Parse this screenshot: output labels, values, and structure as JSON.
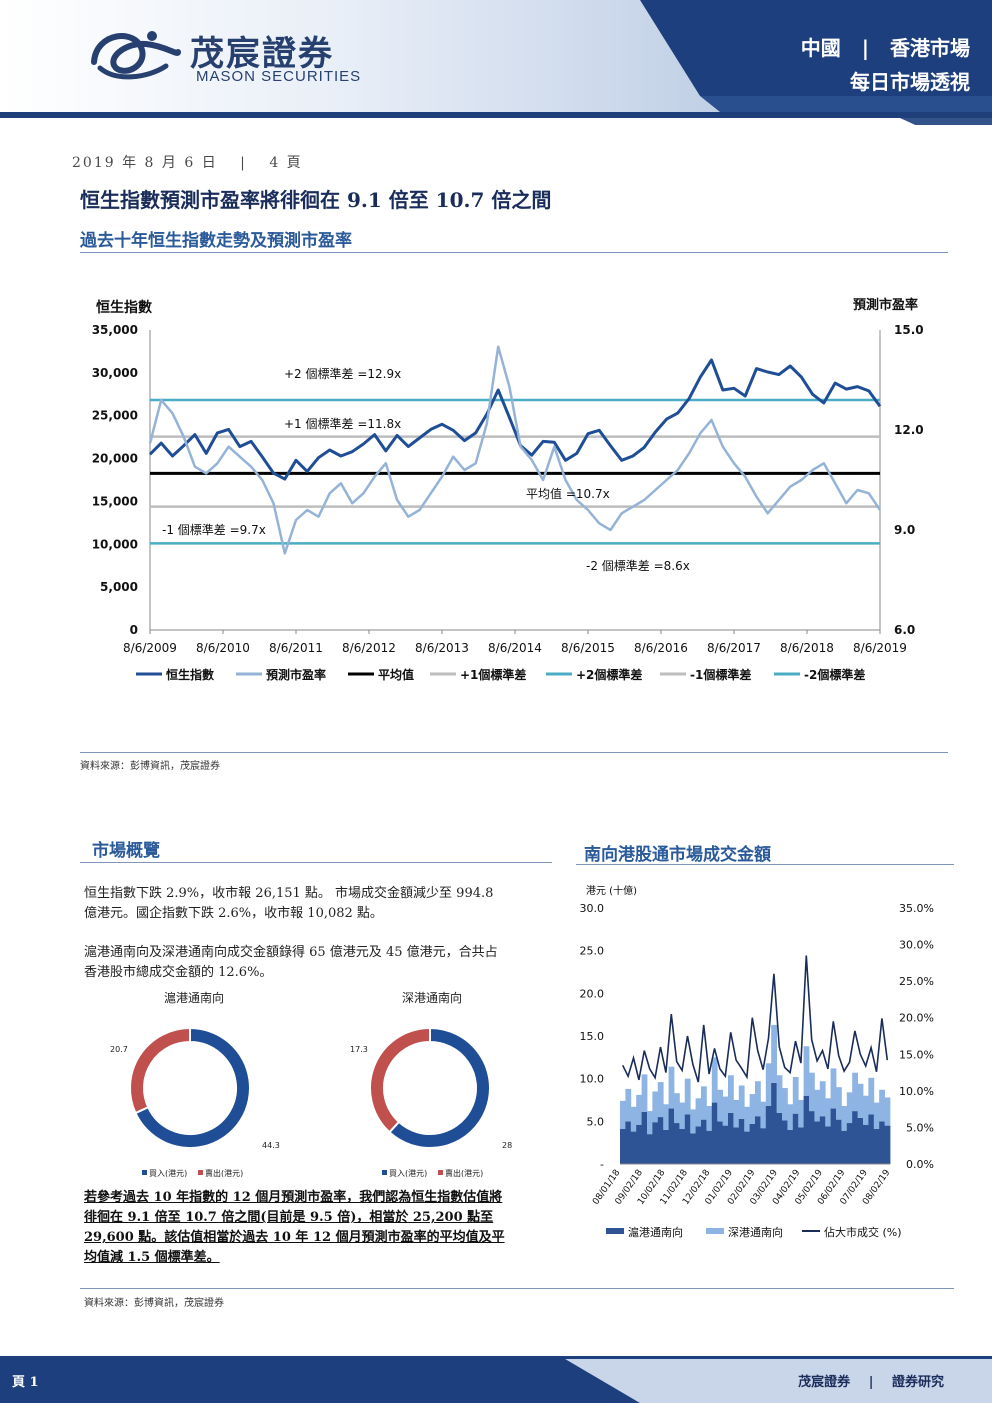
{
  "header": {
    "brand_cn": "茂宸證券",
    "brand_en": "MASON SECURITIES",
    "region_left": "中國",
    "region_right": "香港市場",
    "report_name": "每日市場透視"
  },
  "meta": {
    "date": "2019 年 8 月 6 日",
    "page": "4 頁"
  },
  "headline": "恒生指數預測市盈率將徘徊在 9.1 倍至 10.7 倍之間",
  "section1": {
    "title": "過去十年恒生指數走勢及預測市盈率",
    "source": "資料來源：彭博資訊，茂宸證券"
  },
  "chart_data": [
    {
      "type": "line",
      "left_axis_label": "恒生指數",
      "right_axis_label": "預測市盈率",
      "left_ylim": [
        0,
        35000
      ],
      "right_ylim": [
        6.0,
        15.0
      ],
      "left_ticks": [
        "0",
        "5,000",
        "10,000",
        "15,000",
        "20,000",
        "25,000",
        "30,000",
        "35,000"
      ],
      "right_ticks": [
        "6.0",
        "9.0",
        "12.0",
        "15.0"
      ],
      "x_ticks": [
        "8/6/2009",
        "8/6/2010",
        "8/6/2011",
        "8/6/2012",
        "8/6/2013",
        "8/6/2014",
        "8/6/2015",
        "8/6/2016",
        "8/6/2017",
        "8/6/2018",
        "8/6/2019"
      ],
      "annotations": [
        "+2 個標準差 =12.9x",
        "+1 個標準差 =11.8x",
        "平均值 =10.7x",
        "-1 個標準差 =9.7x",
        "-2 個標準差 =8.6x"
      ],
      "reference_lines": [
        {
          "name": "平均值",
          "value": 10.7,
          "color": "#000000"
        },
        {
          "name": "+1個標準差",
          "value": 11.8,
          "color": "#bdbdbd"
        },
        {
          "name": "+2個標準差",
          "value": 12.9,
          "color": "#4bacc6"
        },
        {
          "name": "-1個標準差",
          "value": 9.7,
          "color": "#bdbdbd"
        },
        {
          "name": "-2個標準差",
          "value": 8.6,
          "color": "#4bacc6"
        }
      ],
      "legend": [
        "恒生指數",
        "預測市盈率",
        "平均值",
        "+1個標準差",
        "+2個標準差",
        "-1個標準差",
        "-2個標準差"
      ],
      "legend_position": "bottom",
      "series": [
        {
          "name": "恒生指數",
          "axis": "left",
          "color": "#1f4e96",
          "values": [
            20500,
            21800,
            20300,
            21500,
            22800,
            20600,
            23000,
            23400,
            21400,
            22000,
            20200,
            18300,
            17600,
            19800,
            18500,
            20100,
            21000,
            20300,
            20800,
            21700,
            22800,
            20900,
            22700,
            21400,
            22400,
            23400,
            24000,
            23300,
            22100,
            23000,
            25200,
            28000,
            24800,
            21500,
            20400,
            22000,
            21900,
            19800,
            20600,
            22900,
            23300,
            21500,
            19800,
            20300,
            21300,
            23100,
            24600,
            25300,
            27000,
            29500,
            31500,
            28000,
            28200,
            27300,
            30500,
            30100,
            29800,
            30800,
            29500,
            27500,
            26500,
            28800,
            28100,
            28400,
            27900,
            26100
          ]
        },
        {
          "name": "預測市盈率",
          "axis": "right",
          "color": "#94b3d6",
          "values": [
            11.6,
            12.9,
            12.5,
            11.8,
            10.9,
            10.7,
            11.0,
            11.5,
            11.2,
            10.9,
            10.5,
            9.8,
            8.3,
            9.3,
            9.6,
            9.4,
            10.1,
            10.4,
            9.8,
            10.1,
            10.6,
            11.0,
            9.9,
            9.4,
            9.6,
            10.1,
            10.6,
            11.2,
            10.8,
            11.0,
            12.2,
            14.5,
            13.3,
            11.5,
            11.1,
            10.5,
            11.5,
            10.5,
            9.9,
            9.6,
            9.2,
            9.0,
            9.5,
            9.7,
            9.9,
            10.2,
            10.5,
            10.8,
            11.3,
            11.9,
            12.3,
            11.5,
            11.0,
            10.6,
            10.0,
            9.5,
            9.9,
            10.3,
            10.5,
            10.8,
            11.0,
            10.4,
            9.8,
            10.2,
            10.1,
            9.6
          ]
        }
      ]
    },
    {
      "type": "bar",
      "axis_label": "港元 (十億)",
      "left_ylim": [
        0,
        30.0
      ],
      "right_ylim": [
        0,
        35.0
      ],
      "left_ticks": [
        "-",
        "5.0",
        "10.0",
        "15.0",
        "20.0",
        "25.0",
        "30.0"
      ],
      "right_ticks": [
        "0.0%",
        "5.0%",
        "10.0%",
        "15.0%",
        "20.0%",
        "25.0%",
        "30.0%",
        "35.0%"
      ],
      "x_ticks": [
        "08/01/18",
        "09/02/18",
        "10/02/18",
        "11/02/18",
        "12/02/18",
        "01/02/19",
        "02/02/19",
        "03/02/19",
        "04/02/19",
        "05/02/19",
        "06/02/19",
        "07/02/19",
        "08/02/19"
      ],
      "legend": [
        "滬港通南向",
        "深港通南向",
        "佔大市成交 (%)"
      ],
      "series": [
        {
          "name": "滬港通南向",
          "color": "#2f5496",
          "values": [
            4.1,
            5.0,
            3.8,
            4.6,
            6.1,
            3.5,
            4.9,
            5.5,
            4.0,
            6.5,
            4.8,
            4.1,
            5.8,
            3.6,
            4.4,
            5.2,
            3.9,
            7.2,
            5.0,
            4.5,
            6.0,
            4.3,
            5.3,
            3.8,
            4.7,
            5.6,
            4.2,
            6.8,
            9.5,
            6.0,
            5.1,
            4.0,
            5.9,
            4.3,
            8.0,
            6.2,
            5.0,
            5.6,
            4.4,
            6.5,
            5.2,
            3.9,
            4.8,
            6.2,
            5.4,
            4.6,
            5.8,
            4.1,
            5.0,
            4.5
          ]
        },
        {
          "name": "深港通南向",
          "color": "#8eb4e3",
          "values": [
            3.3,
            3.8,
            2.9,
            3.5,
            4.4,
            2.7,
            3.6,
            4.1,
            3.0,
            4.9,
            3.5,
            3.1,
            4.2,
            2.8,
            3.3,
            3.9,
            2.9,
            5.3,
            3.7,
            3.4,
            4.4,
            3.2,
            3.9,
            2.9,
            3.5,
            4.1,
            3.1,
            5.0,
            6.8,
            4.4,
            3.8,
            3.0,
            4.3,
            3.2,
            5.8,
            4.5,
            3.7,
            4.1,
            3.3,
            4.7,
            3.8,
            2.9,
            3.6,
            4.5,
            4.0,
            3.4,
            4.3,
            3.1,
            3.7,
            3.3
          ]
        },
        {
          "name": "佔大市成交 (%)",
          "color": "#1a2c5a",
          "axis": "right",
          "values": [
            13.5,
            12.0,
            14.5,
            11.5,
            15.5,
            13.0,
            11.8,
            16.0,
            12.5,
            20.5,
            14.0,
            12.8,
            17.5,
            13.6,
            11.2,
            19.0,
            12.3,
            15.8,
            13.0,
            12.0,
            18.0,
            14.2,
            13.1,
            11.9,
            20.0,
            15.5,
            12.9,
            17.2,
            26.0,
            16.0,
            13.2,
            12.5,
            16.8,
            13.8,
            28.5,
            17.0,
            14.1,
            15.5,
            13.0,
            19.5,
            14.8,
            12.7,
            13.9,
            18.2,
            15.0,
            13.4,
            15.9,
            12.6,
            19.9,
            14.2
          ]
        }
      ]
    },
    {
      "type": "pie",
      "title": "滬港通南向",
      "categories": [
        "買入(港元)",
        "賣出(港元)"
      ],
      "values": [
        44.3,
        20.7
      ],
      "colors": [
        "#1f4e96",
        "#c0504d"
      ]
    },
    {
      "type": "pie",
      "title": "深港通南向",
      "categories": [
        "買入(港元)",
        "賣出(港元)"
      ],
      "values": [
        28.0,
        17.3
      ],
      "colors": [
        "#1f4e96",
        "#c0504d"
      ]
    }
  ],
  "section2": {
    "title": "市場概覽",
    "para1_line1": "恒生指數下跌 2.9%，收市報 26,151 點。 市場成交金額減少至 994.8",
    "para1_line2": "億港元。國企指數下跌 2.6%，收市報 10,082 點。",
    "para2_line1": "滬港通南向及深港通南向成交金額錄得 65 億港元及 45 億港元，合共占",
    "para2_line2": "香港股市總成交金額的 12.6%。",
    "conclusion_line1": "若參考過去 10 年指數的 12 個月預測市盈率，我們認為恒生指數估值將",
    "conclusion_line2": "徘徊在 9.1 倍至 10.7 倍之間(目前是 9.5 倍)，相當於 25,200 點至",
    "conclusion_line3": "29,600 點。該估值相當於過去 10 年 12 個月預測市盈率的平均值及平",
    "conclusion_line4": "均值減 1.5 個標準差。",
    "source": "資料來源：彭博資訊，茂宸證券"
  },
  "section3": {
    "title": "南向港股通市場成交金額"
  },
  "footer": {
    "page": "頁 1",
    "brand": "茂宸證券",
    "sep": "|",
    "dept": "證券研究"
  }
}
